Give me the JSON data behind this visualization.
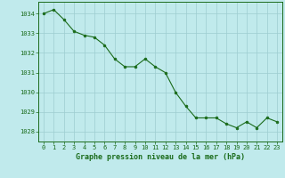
{
  "x": [
    0,
    1,
    2,
    3,
    4,
    5,
    6,
    7,
    8,
    9,
    10,
    11,
    12,
    13,
    14,
    15,
    16,
    17,
    18,
    19,
    20,
    21,
    22,
    23
  ],
  "y": [
    1034.0,
    1034.2,
    1033.7,
    1033.1,
    1032.9,
    1032.8,
    1032.4,
    1031.7,
    1031.3,
    1031.3,
    1031.7,
    1031.3,
    1031.0,
    1030.0,
    1029.3,
    1028.7,
    1028.7,
    1028.7,
    1028.4,
    1028.2,
    1028.5,
    1028.2,
    1028.7,
    1028.5
  ],
  "line_color": "#1a6b1a",
  "marker_color": "#1a6b1a",
  "bg_color": "#c0eaec",
  "grid_color": "#9dcdd0",
  "xlabel": "Graphe pression niveau de la mer (hPa)",
  "xlabel_color": "#1a6b1a",
  "tick_color": "#1a6b1a",
  "ylim": [
    1027.5,
    1034.6
  ],
  "xlim": [
    -0.5,
    23.5
  ],
  "yticks": [
    1028,
    1029,
    1030,
    1031,
    1032,
    1033,
    1034
  ],
  "xticks": [
    0,
    1,
    2,
    3,
    4,
    5,
    6,
    7,
    8,
    9,
    10,
    11,
    12,
    13,
    14,
    15,
    16,
    17,
    18,
    19,
    20,
    21,
    22,
    23
  ],
  "tick_fontsize": 5.0,
  "xlabel_fontsize": 6.0
}
